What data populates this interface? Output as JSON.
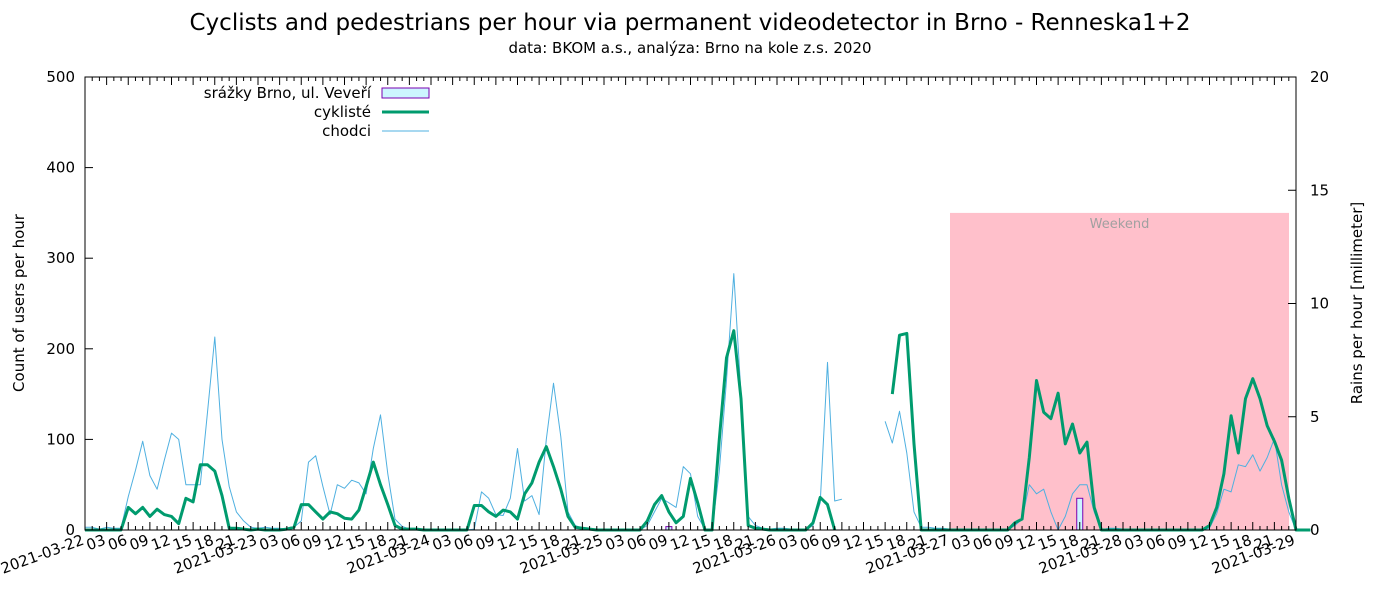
{
  "chart_data": {
    "type": "line",
    "title": "Cyclists and pedestrians per hour via permanent videodetector in Brno - Renneska1+2",
    "subtitle": "data: BKOM a.s., analýza: Brno na kole z.s. 2020",
    "ylabel": "Count of users per hour",
    "y2label": "Rains per hour [millimeter]",
    "ylim": [
      0,
      500
    ],
    "y2lim": [
      0,
      20
    ],
    "yticks": [
      "0",
      "100",
      "200",
      "300",
      "400",
      "500"
    ],
    "y2ticks": [
      "0",
      "5",
      "10",
      "15",
      "20"
    ],
    "xlim_hours": [
      0,
      168
    ],
    "date_ticks": [
      "2021-03-22",
      "2021-03-23",
      "2021-03-24",
      "2021-03-25",
      "2021-03-26",
      "2021-03-27",
      "2021-03-28",
      "2021-03-29"
    ],
    "hour_ticks": [
      "03",
      "06",
      "09",
      "12",
      "15",
      "18",
      "21"
    ],
    "weekend_label": "Weekend",
    "weekend_range_hours": [
      120,
      168
    ],
    "weekend_ymax": 350,
    "legend": [
      {
        "label": "srážky Brno, ul. Veveří",
        "kind": "bar",
        "color": "#ccf5ff",
        "stroke": "#7a00b0"
      },
      {
        "label": "cyklisté",
        "kind": "line",
        "color": "#009b6e"
      },
      {
        "label": "chodci",
        "kind": "line",
        "color": "#4fb0e0"
      }
    ],
    "series": [
      {
        "name": "cyklisté",
        "color": "#009b6e",
        "values": [
          0,
          0,
          0,
          0,
          0,
          0,
          25,
          18,
          25,
          15,
          23,
          17,
          15,
          7,
          35,
          31,
          72,
          72,
          65,
          38,
          2,
          2,
          1,
          0,
          1,
          0,
          0,
          0,
          1,
          3,
          28,
          28,
          20,
          12,
          20,
          18,
          13,
          12,
          22,
          48,
          75,
          50,
          28,
          5,
          1,
          1,
          1,
          0,
          0,
          0,
          0,
          0,
          0,
          0,
          27,
          27,
          20,
          15,
          22,
          20,
          12,
          40,
          52,
          75,
          92,
          70,
          45,
          15,
          3,
          2,
          1,
          0,
          0,
          0,
          0,
          0,
          0,
          0,
          10,
          28,
          38,
          20,
          8,
          15,
          57,
          30,
          0,
          0,
          100,
          190,
          220,
          145,
          5,
          2,
          1,
          0,
          0,
          0,
          0,
          0,
          0,
          8,
          36,
          28,
          0,
          null,
          null,
          null,
          null,
          null,
          null,
          null,
          150,
          215,
          217,
          95,
          0,
          0,
          0,
          0,
          0,
          0,
          0,
          0,
          0,
          0,
          0,
          0,
          0,
          8,
          12,
          80,
          165,
          130,
          123,
          151,
          95,
          117,
          85,
          97,
          25,
          0,
          0,
          0,
          0,
          0,
          0,
          0,
          0,
          0,
          0,
          0,
          0,
          0,
          0,
          0,
          5,
          25,
          62,
          126,
          85,
          145,
          167,
          145,
          115,
          98,
          77,
          35,
          0,
          0,
          0
        ]
      },
      {
        "name": "chodci",
        "color": "#4fb0e0",
        "values": [
          3,
          3,
          1,
          3,
          2,
          2,
          37,
          66,
          98,
          60,
          45,
          77,
          107,
          100,
          50,
          50,
          50,
          130,
          213,
          100,
          48,
          20,
          10,
          3,
          2,
          3,
          2,
          2,
          1,
          3,
          10,
          75,
          82,
          48,
          17,
          50,
          46,
          55,
          52,
          40,
          90,
          127,
          62,
          12,
          4,
          1,
          1,
          0,
          0,
          0,
          0,
          0,
          0,
          0,
          1,
          42,
          35,
          17,
          16,
          35,
          90,
          32,
          38,
          17,
          100,
          162,
          103,
          20,
          5,
          2,
          1,
          1,
          0,
          1,
          0,
          0,
          0,
          0,
          5,
          20,
          35,
          30,
          25,
          70,
          62,
          15,
          1,
          0,
          65,
          165,
          283,
          150,
          15,
          5,
          2,
          1,
          2,
          2,
          1,
          1,
          0,
          5,
          30,
          185,
          32,
          34,
          null,
          null,
          null,
          null,
          null,
          120,
          96,
          131,
          85,
          20,
          3,
          3,
          2,
          2,
          1,
          1,
          1,
          1,
          0,
          0,
          0,
          0,
          0,
          5,
          12,
          50,
          40,
          45,
          20,
          0,
          15,
          40,
          50,
          50,
          20,
          0,
          2,
          2,
          1,
          1,
          0,
          0,
          0,
          0,
          0,
          0,
          0,
          0,
          0,
          0,
          2,
          18,
          45,
          42,
          72,
          70,
          83,
          65,
          80,
          101,
          50,
          20,
          0,
          0,
          0
        ]
      }
    ],
    "rain": [
      {
        "hour": 138,
        "value": 1.4
      },
      {
        "hour": 81,
        "value": 0.15
      }
    ]
  }
}
